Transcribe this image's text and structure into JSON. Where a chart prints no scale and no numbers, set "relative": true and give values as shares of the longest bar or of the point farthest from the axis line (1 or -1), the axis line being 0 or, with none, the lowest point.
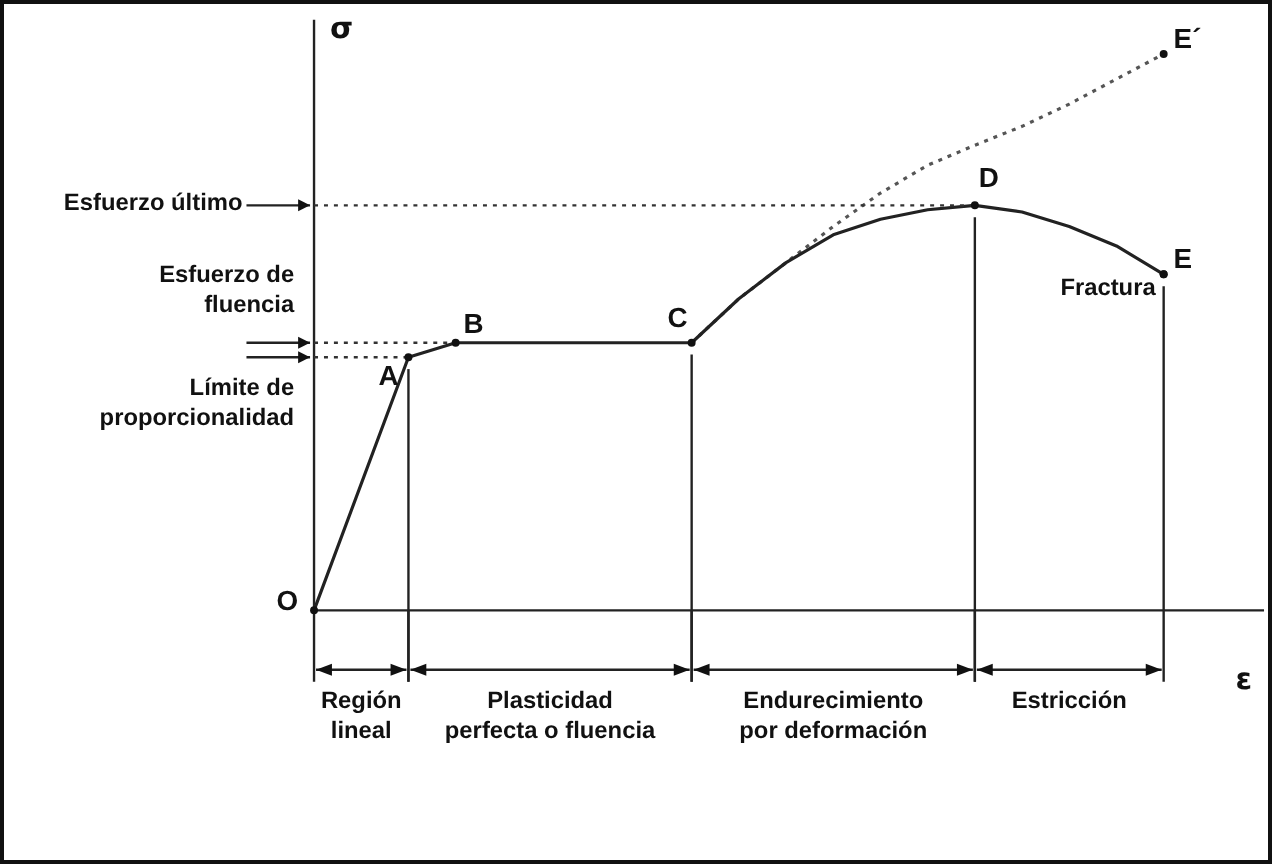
{
  "chart_data": {
    "type": "line",
    "relative": true,
    "xlabel": "ε",
    "ylabel": "σ",
    "marker": "none",
    "categories": [
      null,
      null,
      null,
      null,
      null,
      null,
      null,
      null,
      null,
      null,
      null,
      null,
      null,
      null,
      null,
      null,
      null,
      null,
      null,
      null,
      null
    ],
    "series": [
      {
        "color": "#222222",
        "line_style": "solid",
        "values": [
          0,
          null,
          0.455,
          0.481,
          null,
          null,
          null,
          null,
          0.481,
          0.56,
          0.625,
          0.675,
          0.703,
          0.72,
          0.728,
          0.716,
          0.69,
          0.655,
          0.604,
          null,
          null
        ]
      },
      {
        "color": "#555555",
        "line_style": "dotted",
        "values": [
          null,
          null,
          null,
          null,
          null,
          null,
          null,
          null,
          0.481,
          0.56,
          0.625,
          0.69,
          0.75,
          0.8,
          0.836,
          0.87,
          0.91,
          0.955,
          1,
          null,
          null
        ]
      }
    ],
    "ref_lines": [
      {
        "axis": "y",
        "value": 0.728,
        "label": "Esfuerzo último",
        "line_style": "dotted"
      },
      {
        "axis": "y",
        "value": 0.481,
        "label": "Esfuerzo de fluencia",
        "line_style": "dotted"
      },
      {
        "axis": "y",
        "value": 0.455,
        "label": "Límite de proporcionalidad",
        "line_style": "dotted"
      }
    ],
    "annotations": [
      "O",
      "A",
      "B",
      "C",
      "D",
      "E",
      "Fractura",
      "E´",
      "Región lineal",
      "Plasticidad perfecta o fluencia",
      "Endurecimiento por deformación",
      "Estricción"
    ]
  }
}
